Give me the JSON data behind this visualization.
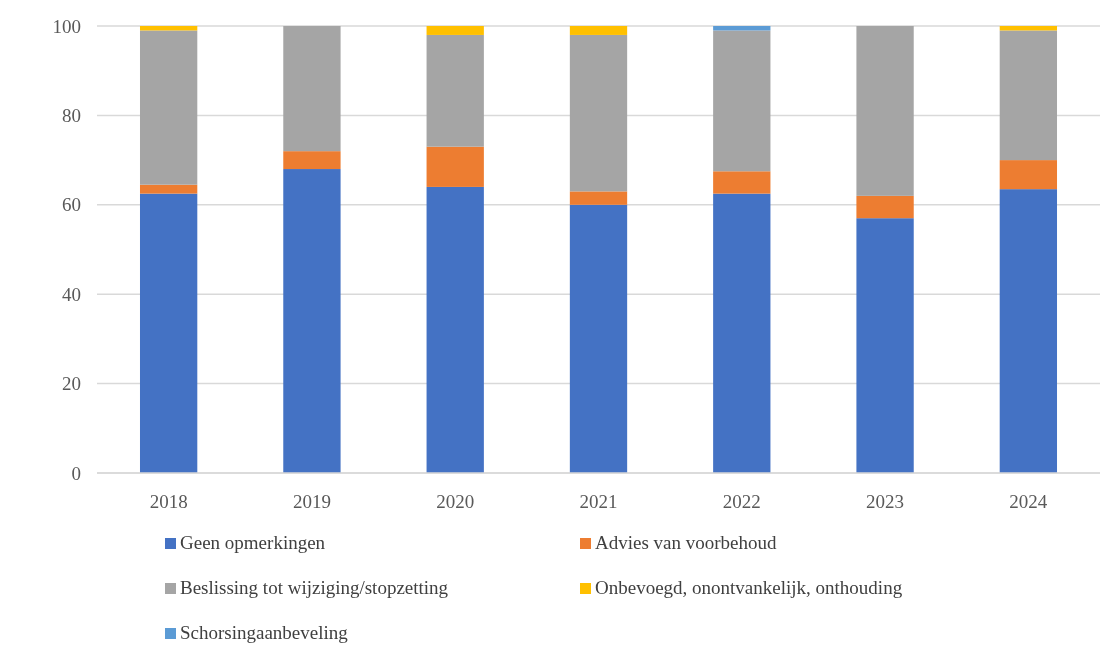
{
  "chart_data": {
    "type": "bar",
    "stacked": true,
    "categories": [
      "2018",
      "2019",
      "2020",
      "2021",
      "2022",
      "2023",
      "2024"
    ],
    "series": [
      {
        "name": "Geen opmerkingen",
        "color": "#4472c4",
        "values": [
          62.5,
          68,
          64,
          60,
          62.5,
          57,
          63.5
        ]
      },
      {
        "name": "Advies van voorbehoud",
        "color": "#ed7d31",
        "values": [
          2,
          4,
          9,
          3,
          5,
          5,
          6.5
        ]
      },
      {
        "name": "Beslissing tot wijziging/stopzetting",
        "color": "#a5a5a5",
        "values": [
          34.5,
          28,
          25,
          35,
          31.5,
          38,
          29
        ]
      },
      {
        "name": "Onbevoegd, onontvankelijk, onthouding",
        "color": "#ffc000",
        "values": [
          1,
          0,
          2,
          2,
          0,
          0,
          1
        ]
      },
      {
        "name": "Schorsingaanbeveling",
        "color": "#5b9bd5",
        "values": [
          0,
          0,
          0,
          0,
          1,
          0,
          0
        ]
      }
    ],
    "ylim": [
      0,
      100
    ],
    "yticks": [
      0,
      20,
      40,
      60,
      80,
      100
    ],
    "grid": "y",
    "legend": "bottom"
  }
}
